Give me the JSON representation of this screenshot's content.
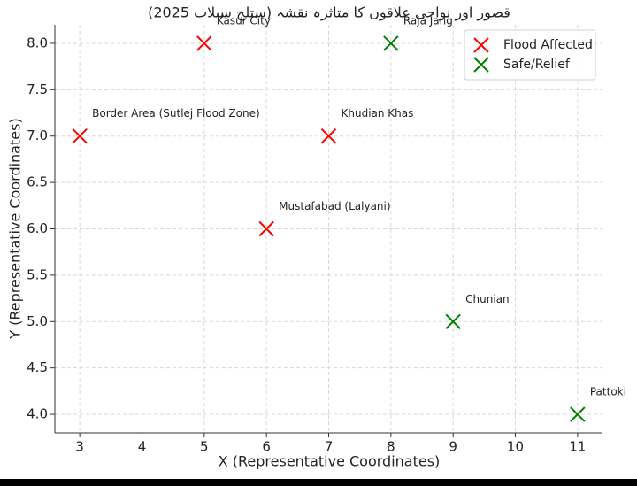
{
  "chart_data": {
    "type": "scatter",
    "title": "قصور اور نواحی علاقوں کا متاثرہ نقشہ (ستلج سیلاب 2025)",
    "x_label": "X (Representative Coordinates)",
    "y_label": "Y (Representative Coordinates)",
    "marker": "x",
    "series": [
      {
        "name": "Flood Affected",
        "color": "#ff0000",
        "x": [
          5,
          3,
          7,
          6
        ],
        "values": [
          8,
          7,
          7,
          6
        ],
        "labels": [
          "Kasur City",
          "Border Area (Sutlej Flood Zone)",
          "Khudian Khas",
          "Mustafabad (Lalyani)"
        ]
      },
      {
        "name": "Safe/Relief",
        "color": "#008000",
        "x": [
          8,
          9,
          11
        ],
        "values": [
          8,
          5,
          4
        ],
        "labels": [
          "Raja Jang",
          "Chunian",
          "Pattoki"
        ]
      }
    ],
    "xlim": [
      2.6,
      11.4
    ],
    "ylim": [
      3.8,
      8.2
    ],
    "xticks": [
      3,
      4,
      5,
      6,
      7,
      8,
      9,
      10,
      11
    ],
    "yticks": [
      {
        "value": 4,
        "label": "4.0"
      },
      {
        "value": 4.5,
        "label": "4.5"
      },
      {
        "value": 5,
        "label": "5.0"
      },
      {
        "value": 5.5,
        "label": "5.5"
      },
      {
        "value": 6,
        "label": "6.0"
      },
      {
        "value": 6.5,
        "label": "6.5"
      },
      {
        "value": 7,
        "label": "7.0"
      },
      {
        "value": 7.5,
        "label": "7.5"
      },
      {
        "value": 8,
        "label": "8.0"
      }
    ],
    "grid": true,
    "legend": "upper right"
  }
}
